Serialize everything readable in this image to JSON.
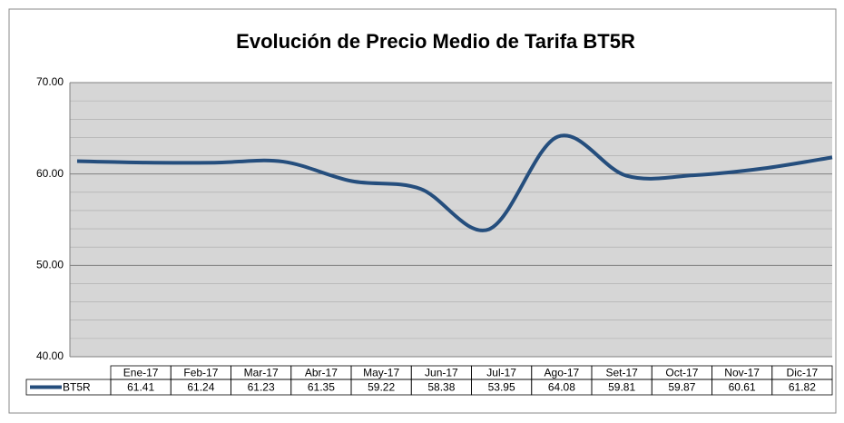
{
  "chart_data": {
    "type": "line",
    "title": "Evolución de Precio Medio de Tarifa BT5R",
    "categories": [
      "Ene-17",
      "Feb-17",
      "Mar-17",
      "Abr-17",
      "May-17",
      "Jun-17",
      "Jul-17",
      "Ago-17",
      "Set-17",
      "Oct-17",
      "Nov-17",
      "Dic-17"
    ],
    "series": [
      {
        "name": "BT5R",
        "color": "#254e7d",
        "values": [
          61.41,
          61.24,
          61.23,
          61.35,
          59.22,
          58.38,
          53.95,
          64.08,
          59.81,
          59.87,
          60.61,
          61.82
        ]
      }
    ],
    "ylim": [
      40,
      70
    ],
    "yticks": [
      {
        "value": 40,
        "label": "40.00"
      },
      {
        "value": 50,
        "label": "50.00"
      },
      {
        "value": 60,
        "label": "60.00"
      },
      {
        "value": 70,
        "label": "70.00"
      }
    ],
    "grid": true,
    "minor_grid_step": 2,
    "smooth": true,
    "data_table": true
  }
}
